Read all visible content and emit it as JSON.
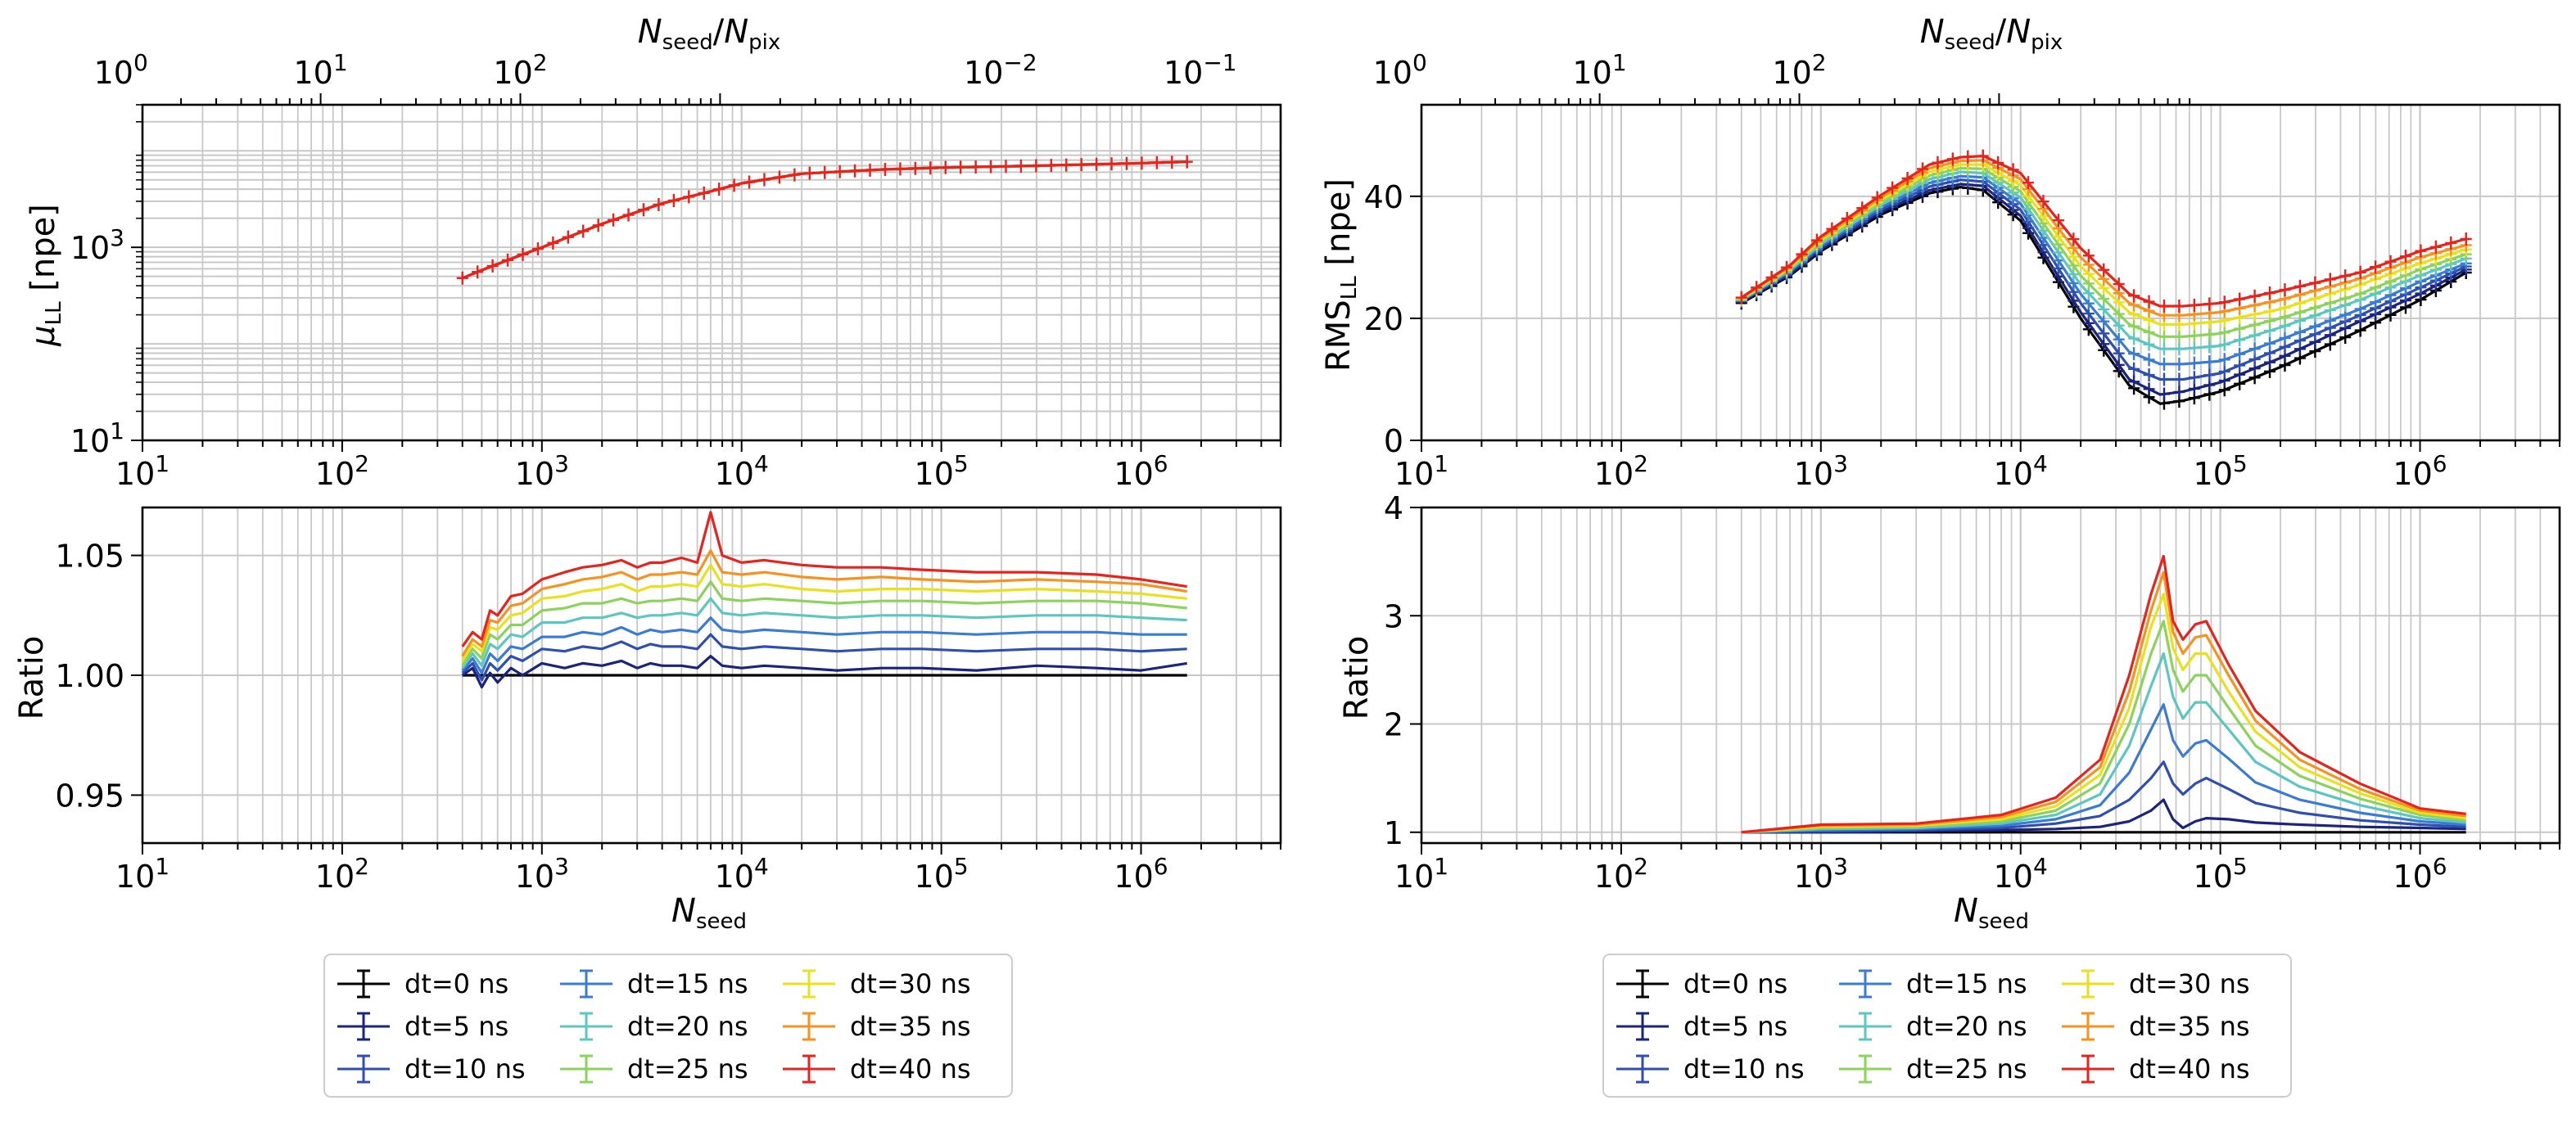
{
  "series_names": [
    "dt=0 ns",
    "dt=5 ns",
    "dt=10 ns",
    "dt=15 ns",
    "dt=20 ns",
    "dt=25 ns",
    "dt=30 ns",
    "dt=35 ns",
    "dt=40 ns"
  ],
  "series_colors": [
    "#000000",
    "#1a237e",
    "#2f4fb0",
    "#3a7bd5",
    "#5cc7c0",
    "#8bd35a",
    "#e8e11e",
    "#f6921e",
    "#e8221c"
  ],
  "chart_data": [
    {
      "id": "mu_main",
      "type": "line",
      "xscale": "log",
      "yscale": "log",
      "xlim": [
        10,
        5000000
      ],
      "ylim": [
        10,
        30000
      ],
      "xlabel": "",
      "ylabel": "μ_LL [npe]",
      "top_axis_label": "N_seed/N_pix",
      "top_axis_factor": 0.1282,
      "xticks": [
        "10^1",
        "10^2",
        "10^3",
        "10^4",
        "10^5",
        "10^6"
      ],
      "yticks": [
        "10^1",
        "10^3"
      ],
      "top_ticks": [
        "10^-2",
        "10^-1",
        "10^0",
        "10^1",
        "10^2"
      ],
      "x": [
        400,
        500,
        700,
        1000,
        2000,
        4000,
        7000,
        10000,
        20000,
        50000,
        100000,
        300000,
        1000000,
        1700000
      ],
      "values": [
        480,
        580,
        760,
        1000,
        1750,
        2850,
        3800,
        4600,
        5800,
        6400,
        6700,
        7000,
        7450,
        7700
      ]
    },
    {
      "id": "rms_main",
      "type": "line",
      "xscale": "log",
      "yscale": "linear",
      "xlim": [
        10,
        5000000
      ],
      "ylim": [
        0,
        55
      ],
      "xlabel": "",
      "ylabel": "RMS_LL [npe]",
      "top_axis_label": "N_seed/N_pix",
      "top_axis_factor": 0.1282,
      "xticks": [
        "10^1",
        "10^2",
        "10^3",
        "10^4",
        "10^5",
        "10^6"
      ],
      "yticks": [
        "0",
        "20",
        "40"
      ],
      "top_ticks": [
        "10^-2",
        "10^-1",
        "10^0",
        "10^1",
        "10^2"
      ],
      "x": [
        400,
        700,
        1000,
        2000,
        3500,
        5000,
        6500,
        10000,
        20000,
        35000,
        50000,
        65000,
        100000,
        200000,
        500000,
        1000000,
        1700000
      ],
      "series": [
        {
          "name": "dt=0 ns",
          "values": [
            22.5,
            27,
            31,
            37,
            40.5,
            41.5,
            41,
            36,
            20,
            9,
            6,
            6.5,
            8,
            12,
            18,
            23,
            27.5
          ]
        },
        {
          "name": "dt=5 ns",
          "values": [
            22.7,
            27.2,
            31.3,
            37.4,
            41,
            42,
            41.7,
            36.8,
            21,
            10,
            7.5,
            8,
            9.5,
            13.5,
            19.5,
            24,
            28
          ]
        },
        {
          "name": "dt=10 ns",
          "values": [
            22.8,
            27.5,
            31.6,
            37.8,
            41.6,
            42.7,
            42.4,
            37.8,
            22.5,
            12,
            10,
            10,
            11,
            15,
            20.5,
            25,
            28.5
          ]
        },
        {
          "name": "dt=15 ns",
          "values": [
            22.9,
            27.7,
            31.9,
            38.2,
            42.2,
            43.3,
            43.1,
            38.8,
            24,
            14.5,
            12.5,
            12.5,
            13,
            16.5,
            21.5,
            26,
            29
          ]
        },
        {
          "name": "dt=20 ns",
          "values": [
            23,
            27.9,
            32.2,
            38.6,
            42.8,
            44,
            43.8,
            39.8,
            25.5,
            17,
            15,
            15,
            15.5,
            18.5,
            23,
            27,
            29.8
          ]
        },
        {
          "name": "dt=25 ns",
          "values": [
            23.1,
            28.1,
            32.5,
            39,
            43.4,
            44.6,
            44.5,
            40.8,
            27,
            19,
            17,
            17,
            17.5,
            20,
            24,
            28,
            30.5
          ]
        },
        {
          "name": "dt=30 ns",
          "values": [
            23.2,
            28.3,
            32.8,
            39.4,
            44,
            45.2,
            45.2,
            41.8,
            28.5,
            21,
            19,
            19,
            19.5,
            21.5,
            25.5,
            29,
            31.3
          ]
        },
        {
          "name": "dt=35 ns",
          "values": [
            23.3,
            28.5,
            33.1,
            39.8,
            44.6,
            45.8,
            45.9,
            42.8,
            30,
            22.5,
            20.5,
            20.5,
            21,
            23,
            26.5,
            30,
            32
          ]
        },
        {
          "name": "dt=40 ns",
          "values": [
            23.4,
            28.7,
            33.4,
            40.2,
            45.2,
            46.4,
            46.6,
            43.8,
            31.5,
            24,
            22,
            22,
            22.5,
            24.5,
            27.5,
            31,
            33
          ]
        }
      ]
    },
    {
      "id": "mu_ratio",
      "type": "line",
      "xscale": "log",
      "yscale": "linear",
      "xlim": [
        10,
        5000000
      ],
      "ylim": [
        0.93,
        1.07
      ],
      "xlabel": "N_seed",
      "ylabel": "Ratio",
      "xticks": [
        "10^1",
        "10^2",
        "10^3",
        "10^4",
        "10^5",
        "10^6"
      ],
      "yticks": [
        "0.95",
        "1.00",
        "1.05"
      ],
      "x": [
        400,
        450,
        500,
        550,
        600,
        700,
        800,
        1000,
        1300,
        1600,
        2000,
        2500,
        3000,
        3500,
        4000,
        5000,
        6000,
        7000,
        8000,
        10000,
        13000,
        20000,
        30000,
        50000,
        80000,
        150000,
        300000,
        600000,
        1000000,
        1700000
      ],
      "series": [
        {
          "name": "dt=0 ns",
          "values": [
            1,
            1,
            1,
            1,
            1,
            1,
            1,
            1,
            1,
            1,
            1,
            1,
            1,
            1,
            1,
            1,
            1,
            1,
            1,
            1,
            1,
            1,
            1,
            1,
            1,
            1,
            1,
            1,
            1,
            1
          ]
        },
        {
          "name": "dt=5 ns",
          "values": [
            1,
            1.003,
            0.995,
            1.001,
            0.997,
            1.003,
            1.0,
            1.005,
            1.003,
            1.005,
            1.004,
            1.006,
            1.003,
            1.005,
            1.004,
            1.004,
            1.003,
            1.008,
            1.004,
            1.003,
            1.004,
            1.003,
            1.002,
            1.003,
            1.003,
            1.002,
            1.004,
            1.003,
            1.002,
            1.005
          ]
        },
        {
          "name": "dt=10 ns",
          "values": [
            1.001,
            1.005,
            0.998,
            1.005,
            1.002,
            1.008,
            1.006,
            1.011,
            1.01,
            1.012,
            1.011,
            1.014,
            1.011,
            1.013,
            1.012,
            1.012,
            1.011,
            1.017,
            1.012,
            1.011,
            1.012,
            1.011,
            1.01,
            1.011,
            1.011,
            1.01,
            1.011,
            1.011,
            1.01,
            1.011
          ]
        },
        {
          "name": "dt=15 ns",
          "values": [
            1.002,
            1.007,
            1.001,
            1.009,
            1.006,
            1.012,
            1.011,
            1.016,
            1.016,
            1.018,
            1.017,
            1.02,
            1.017,
            1.019,
            1.018,
            1.019,
            1.018,
            1.024,
            1.019,
            1.018,
            1.019,
            1.018,
            1.017,
            1.018,
            1.018,
            1.017,
            1.018,
            1.018,
            1.017,
            1.017
          ]
        },
        {
          "name": "dt=20 ns",
          "values": [
            1.003,
            1.009,
            1.004,
            1.013,
            1.011,
            1.017,
            1.016,
            1.022,
            1.022,
            1.024,
            1.024,
            1.026,
            1.024,
            1.025,
            1.025,
            1.026,
            1.025,
            1.032,
            1.026,
            1.025,
            1.026,
            1.025,
            1.024,
            1.025,
            1.025,
            1.024,
            1.025,
            1.025,
            1.024,
            1.023
          ]
        },
        {
          "name": "dt=25 ns",
          "values": [
            1.004,
            1.011,
            1.007,
            1.017,
            1.015,
            1.021,
            1.021,
            1.027,
            1.028,
            1.03,
            1.03,
            1.032,
            1.03,
            1.031,
            1.031,
            1.032,
            1.031,
            1.039,
            1.032,
            1.031,
            1.032,
            1.031,
            1.03,
            1.031,
            1.031,
            1.03,
            1.031,
            1.031,
            1.03,
            1.028
          ]
        },
        {
          "name": "dt=30 ns",
          "values": [
            1.006,
            1.013,
            1.01,
            1.02,
            1.019,
            1.025,
            1.026,
            1.032,
            1.033,
            1.035,
            1.036,
            1.038,
            1.035,
            1.037,
            1.037,
            1.038,
            1.037,
            1.046,
            1.038,
            1.037,
            1.038,
            1.036,
            1.035,
            1.036,
            1.036,
            1.035,
            1.036,
            1.035,
            1.034,
            1.032
          ]
        },
        {
          "name": "dt=35 ns",
          "values": [
            1.008,
            1.015,
            1.012,
            1.023,
            1.022,
            1.029,
            1.03,
            1.036,
            1.038,
            1.04,
            1.041,
            1.043,
            1.04,
            1.042,
            1.042,
            1.043,
            1.042,
            1.052,
            1.043,
            1.042,
            1.043,
            1.041,
            1.04,
            1.041,
            1.04,
            1.039,
            1.04,
            1.039,
            1.038,
            1.035
          ]
        },
        {
          "name": "dt=40 ns",
          "values": [
            1.012,
            1.018,
            1.015,
            1.027,
            1.025,
            1.033,
            1.034,
            1.04,
            1.043,
            1.045,
            1.046,
            1.048,
            1.045,
            1.047,
            1.047,
            1.049,
            1.047,
            1.068,
            1.05,
            1.047,
            1.048,
            1.046,
            1.045,
            1.045,
            1.044,
            1.043,
            1.043,
            1.042,
            1.04,
            1.037
          ]
        }
      ]
    },
    {
      "id": "rms_ratio",
      "type": "line",
      "xscale": "log",
      "yscale": "linear",
      "xlim": [
        10,
        5000000
      ],
      "ylim": [
        0.9,
        4.0
      ],
      "xlabel": "N_seed",
      "ylabel": "Ratio",
      "xticks": [
        "10^1",
        "10^2",
        "10^3",
        "10^4",
        "10^5",
        "10^6"
      ],
      "yticks": [
        "1",
        "2",
        "3",
        "4"
      ],
      "x": [
        400,
        1000,
        3000,
        8000,
        15000,
        25000,
        35000,
        45000,
        52000,
        58000,
        65000,
        75000,
        85000,
        110000,
        150000,
        250000,
        500000,
        1000000,
        1700000
      ],
      "series": [
        {
          "name": "dt=0 ns",
          "values": [
            1,
            1,
            1,
            1,
            1,
            1,
            1,
            1,
            1,
            1,
            1,
            1,
            1,
            1,
            1,
            1,
            1,
            1,
            1
          ]
        },
        {
          "name": "dt=5 ns",
          "values": [
            1,
            1.0,
            1.01,
            1.02,
            1.03,
            1.05,
            1.1,
            1.2,
            1.3,
            1.12,
            1.04,
            1.1,
            1.13,
            1.12,
            1.09,
            1.07,
            1.05,
            1.04,
            1.03
          ]
        },
        {
          "name": "dt=10 ns",
          "values": [
            1,
            1.01,
            1.02,
            1.04,
            1.08,
            1.15,
            1.3,
            1.5,
            1.65,
            1.45,
            1.35,
            1.45,
            1.5,
            1.4,
            1.27,
            1.18,
            1.11,
            1.07,
            1.05
          ]
        },
        {
          "name": "dt=15 ns",
          "values": [
            1,
            1.02,
            1.03,
            1.06,
            1.12,
            1.25,
            1.55,
            1.95,
            2.18,
            1.85,
            1.7,
            1.82,
            1.85,
            1.68,
            1.46,
            1.3,
            1.18,
            1.1,
            1.07
          ]
        },
        {
          "name": "dt=20 ns",
          "values": [
            1,
            1.03,
            1.04,
            1.08,
            1.16,
            1.35,
            1.8,
            2.35,
            2.65,
            2.25,
            2.05,
            2.2,
            2.2,
            1.95,
            1.65,
            1.42,
            1.25,
            1.13,
            1.09
          ]
        },
        {
          "name": "dt=25 ns",
          "values": [
            1,
            1.04,
            1.05,
            1.1,
            1.2,
            1.45,
            2.0,
            2.65,
            2.95,
            2.5,
            2.3,
            2.45,
            2.45,
            2.15,
            1.8,
            1.52,
            1.31,
            1.16,
            1.11
          ]
        },
        {
          "name": "dt=30 ns",
          "values": [
            1,
            1.05,
            1.06,
            1.12,
            1.24,
            1.53,
            2.15,
            2.9,
            3.2,
            2.7,
            2.5,
            2.65,
            2.65,
            2.3,
            1.93,
            1.6,
            1.36,
            1.18,
            1.13
          ]
        },
        {
          "name": "dt=35 ns",
          "values": [
            1,
            1.06,
            1.07,
            1.14,
            1.28,
            1.6,
            2.3,
            3.05,
            3.4,
            2.85,
            2.65,
            2.8,
            2.82,
            2.45,
            2.03,
            1.67,
            1.4,
            1.2,
            1.15
          ]
        },
        {
          "name": "dt=40 ns",
          "values": [
            1,
            1.07,
            1.08,
            1.16,
            1.32,
            1.67,
            2.45,
            3.2,
            3.55,
            2.95,
            2.78,
            2.92,
            2.95,
            2.55,
            2.12,
            1.74,
            1.45,
            1.22,
            1.17
          ]
        }
      ]
    }
  ]
}
